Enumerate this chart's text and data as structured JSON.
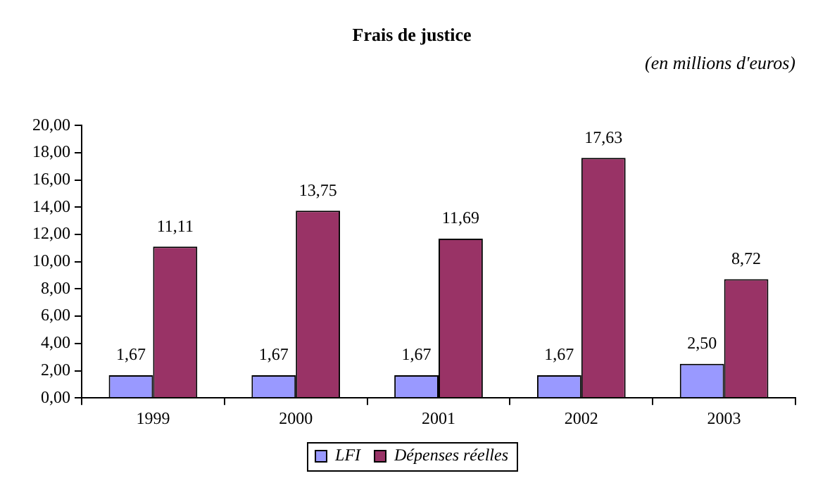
{
  "chart_data": {
    "type": "bar",
    "title": "Frais de justice",
    "subtitle": "(en millions d'euros)",
    "categories": [
      "1999",
      "2000",
      "2001",
      "2002",
      "2003"
    ],
    "series": [
      {
        "name": "LFI",
        "color": "#9999ff",
        "values": [
          1.67,
          1.67,
          1.67,
          1.67,
          2.5
        ],
        "value_labels": [
          "1,67",
          "1,67",
          "1,67",
          "1,67",
          "2,50"
        ]
      },
      {
        "name": "Dépenses réelles",
        "color": "#993366",
        "values": [
          11.11,
          13.75,
          11.69,
          17.63,
          8.72
        ],
        "value_labels": [
          "11,11",
          "13,75",
          "11,69",
          "17,63",
          "8,72"
        ]
      }
    ],
    "ylim": [
      0,
      20
    ],
    "yticks": [
      {
        "value": 0,
        "label": "0,00"
      },
      {
        "value": 2,
        "label": "2,00"
      },
      {
        "value": 4,
        "label": "4,00"
      },
      {
        "value": 6,
        "label": "6,00"
      },
      {
        "value": 8,
        "label": "8,00"
      },
      {
        "value": 10,
        "label": "10,00"
      },
      {
        "value": 12,
        "label": "12,00"
      },
      {
        "value": 14,
        "label": "14,00"
      },
      {
        "value": 16,
        "label": "16,00"
      },
      {
        "value": 18,
        "label": "18,00"
      },
      {
        "value": 20,
        "label": "20,00"
      }
    ],
    "grid": false,
    "legend": "bottom"
  }
}
